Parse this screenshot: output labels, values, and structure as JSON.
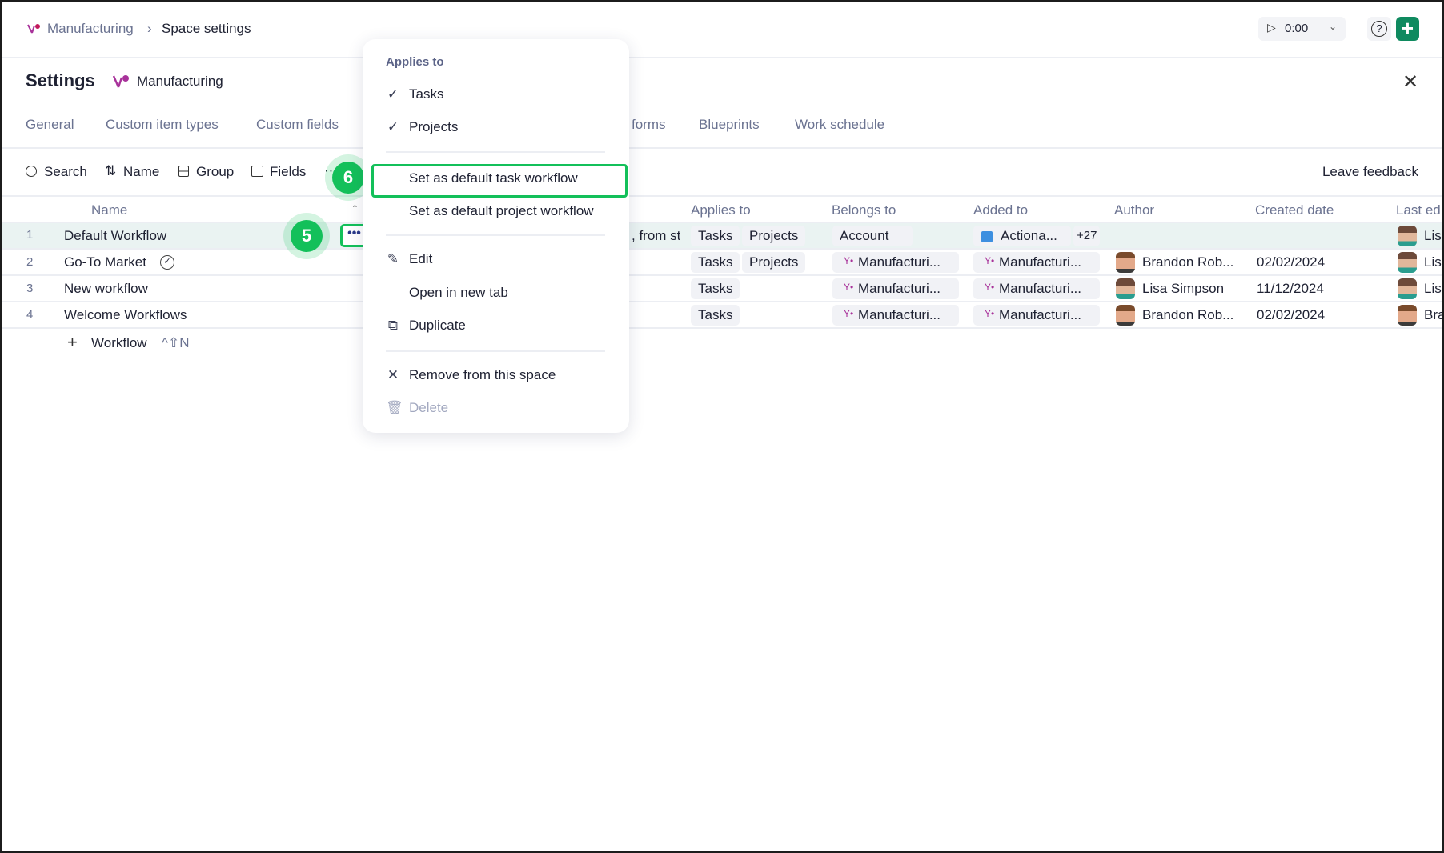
{
  "breadcrumb": {
    "space": "Manufacturing",
    "separator": "›",
    "current": "Space settings"
  },
  "timer": {
    "value": "0:00"
  },
  "header": {
    "title": "Settings",
    "space": "Manufacturing"
  },
  "tabs": [
    "General",
    "Custom item types",
    "Custom fields",
    "forms",
    "Blueprints",
    "Work schedule"
  ],
  "toolbar": {
    "search": "Search",
    "sort": "Name",
    "group": "Group",
    "fields": "Fields",
    "more": "··",
    "feedback": "Leave feedback"
  },
  "columns": {
    "name": "Name",
    "applies_to": "Applies to",
    "belongs_to": "Belongs to",
    "added_to": "Added to",
    "author": "Author",
    "created": "Created date",
    "last_edited": "Last ed"
  },
  "rows": [
    {
      "num": "1",
      "name": "Default Workflow",
      "desc": ", from st",
      "applies": [
        "Tasks",
        "Projects"
      ],
      "belongs": "Account",
      "added": "Actiona...",
      "added_more": "+27",
      "author": "",
      "created": "",
      "last": "Lis"
    },
    {
      "num": "2",
      "name": "Go-To Market",
      "applies": [
        "Tasks",
        "Projects"
      ],
      "belongs": "Manufacturi...",
      "added": "Manufacturi...",
      "author": "Brandon Rob...",
      "created": "02/02/2024",
      "last": "Lis"
    },
    {
      "num": "3",
      "name": "New workflow",
      "applies": [
        "Tasks"
      ],
      "belongs": "Manufacturi...",
      "added": "Manufacturi...",
      "author": "Lisa Simpson",
      "created": "11/12/2024",
      "last": "Lis"
    },
    {
      "num": "4",
      "name": "Welcome Workflows",
      "applies": [
        "Tasks"
      ],
      "belongs": "Manufacturi...",
      "added": "Manufacturi...",
      "author": "Brandon Rob...",
      "created": "02/02/2024",
      "last": "Bra"
    }
  ],
  "add_row": {
    "label": "Workflow",
    "shortcut": "^⇧N"
  },
  "menu": {
    "section": "Applies to",
    "tasks": "Tasks",
    "projects": "Projects",
    "default_task": "Set as default task workflow",
    "default_project": "Set as default project workflow",
    "edit": "Edit",
    "open_tab": "Open in new tab",
    "duplicate": "Duplicate",
    "remove": "Remove from this space",
    "delete": "Delete"
  },
  "badges": {
    "step5": "5",
    "step6": "6"
  },
  "colors": {
    "accent_green": "#13c05a",
    "brand_plus": "#0f8a5f",
    "space_logo": "#a8329a",
    "row_highlight": "#eaf3f2"
  }
}
